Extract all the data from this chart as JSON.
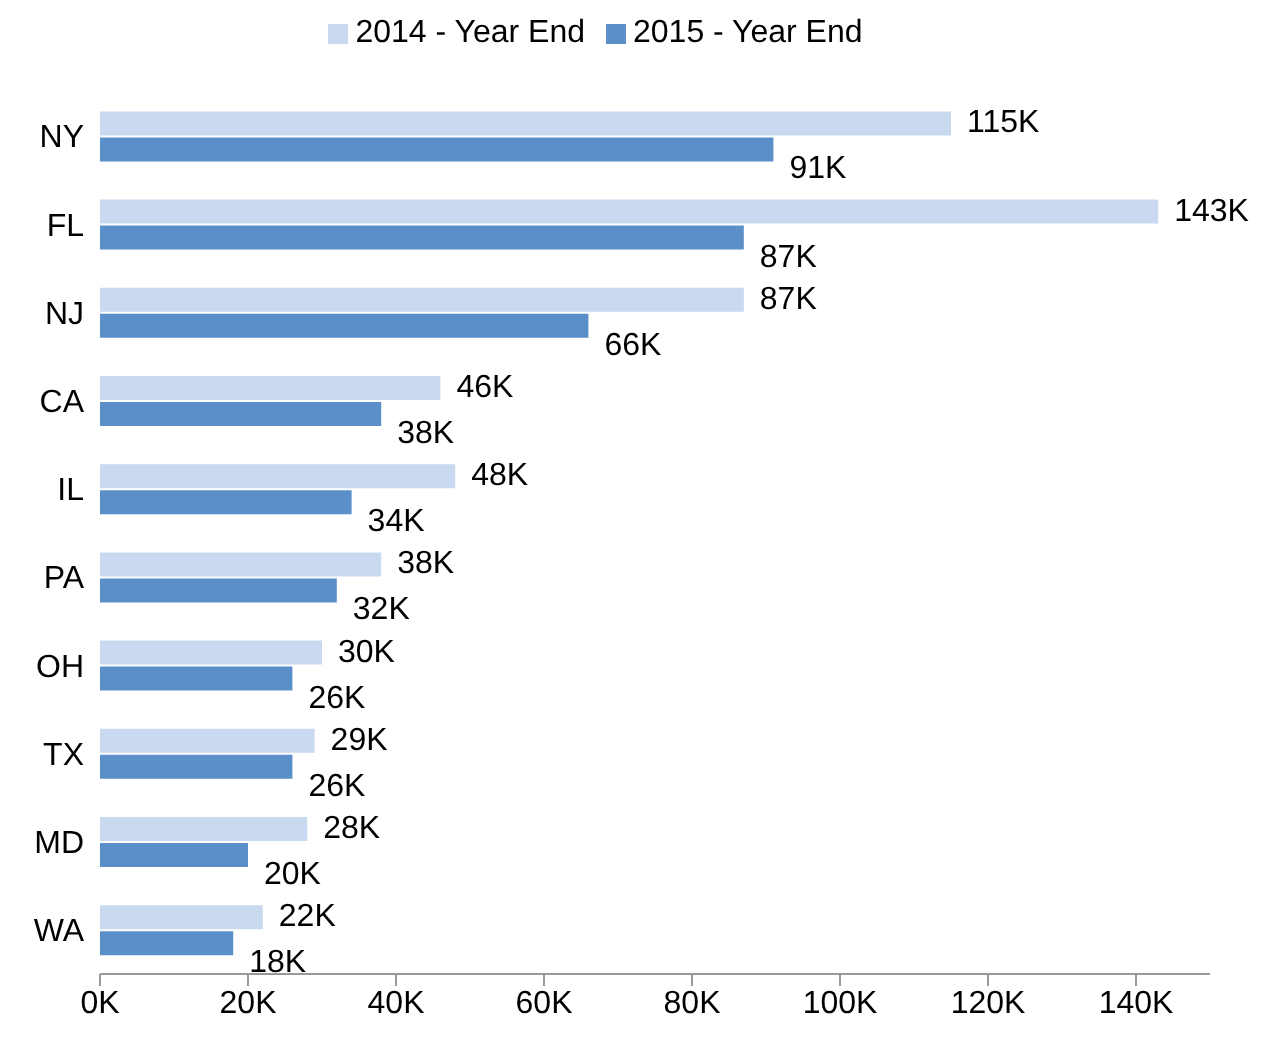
{
  "chart_data": {
    "type": "bar",
    "orientation": "horizontal",
    "categories": [
      "NY",
      "FL",
      "NJ",
      "CA",
      "IL",
      "PA",
      "OH",
      "TX",
      "MD",
      "WA"
    ],
    "series": [
      {
        "name": "2014 - Year End",
        "color": "#c9d9ef",
        "values": [
          115000,
          143000,
          87000,
          46000,
          48000,
          38000,
          30000,
          29000,
          28000,
          22000
        ],
        "value_labels": [
          "115K",
          "143K",
          "87K",
          "46K",
          "48K",
          "38K",
          "30K",
          "29K",
          "28K",
          "22K"
        ]
      },
      {
        "name": "2015 - Year End",
        "color": "#5b8fc9",
        "values": [
          91000,
          87000,
          66000,
          38000,
          34000,
          32000,
          26000,
          26000,
          20000,
          18000
        ],
        "value_labels": [
          "91K",
          "87K",
          "66K",
          "38K",
          "34K",
          "32K",
          "26K",
          "26K",
          "20K",
          "18K"
        ]
      }
    ],
    "xlim": [
      0,
      150000
    ],
    "xticks": [
      {
        "value": 0,
        "label": "0K"
      },
      {
        "value": 20000,
        "label": "20K"
      },
      {
        "value": 40000,
        "label": "40K"
      },
      {
        "value": 60000,
        "label": "60K"
      },
      {
        "value": 80000,
        "label": "80K"
      },
      {
        "value": 100000,
        "label": "100K"
      },
      {
        "value": 120000,
        "label": "120K"
      },
      {
        "value": 140000,
        "label": "140K"
      }
    ],
    "legend": "top",
    "grid": false
  }
}
